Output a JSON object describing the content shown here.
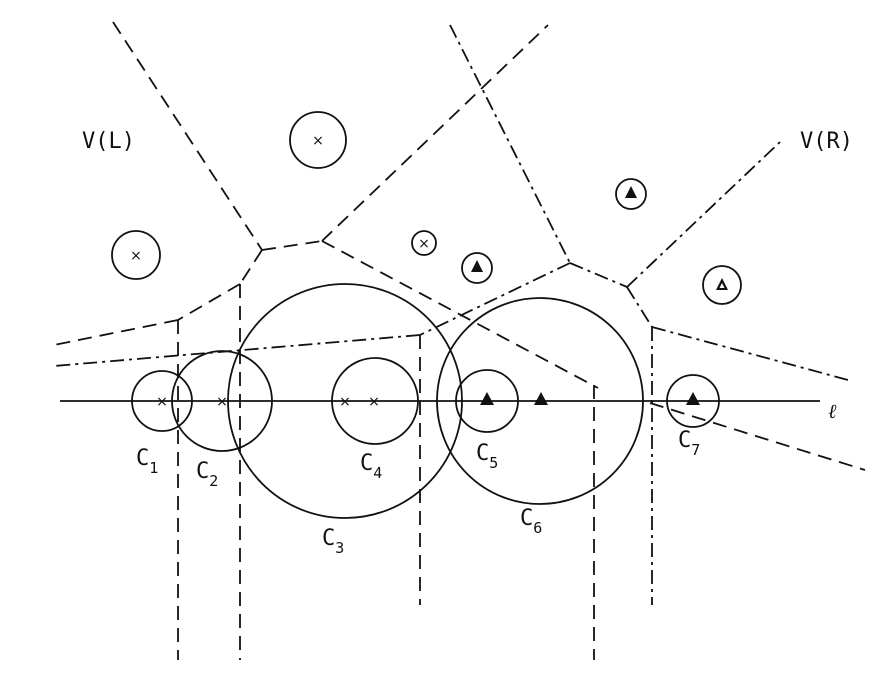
{
  "labels": {
    "v_left": "V(L)",
    "v_right": "V(R)",
    "line": "ℓ",
    "c1": "C",
    "c1_sub": "1",
    "c2": "C",
    "c2_sub": "2",
    "c3": "C",
    "c3_sub": "3",
    "c4": "C",
    "c4_sub": "4",
    "c5": "C",
    "c5_sub": "5",
    "c6": "C",
    "c6_sub": "6",
    "c7": "C",
    "c7_sub": "7"
  },
  "markers": {
    "left_point": "×"
  },
  "style": {
    "ink": "#111111",
    "paper": "#ffffff"
  }
}
